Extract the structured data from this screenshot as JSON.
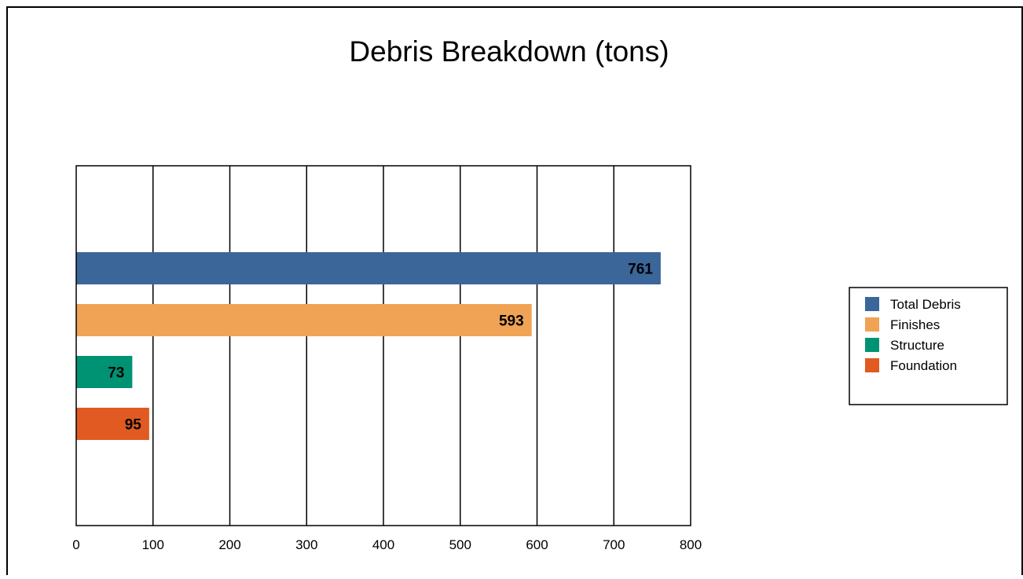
{
  "chart_data": {
    "type": "bar",
    "orientation": "horizontal",
    "title": "Debris Breakdown (tons)",
    "xlabel": "",
    "ylabel": "",
    "xlim": [
      0,
      800
    ],
    "x_ticks": [
      "0",
      "100",
      "200",
      "300",
      "400",
      "500",
      "600",
      "700",
      "800"
    ],
    "grid": "vertical",
    "legend_position": "right",
    "series": [
      {
        "name": "Total Debris",
        "value": 761,
        "label": "761",
        "color": "#3b6699"
      },
      {
        "name": "Finishes",
        "value": 593,
        "label": "593",
        "color": "#f0a354"
      },
      {
        "name": "Structure",
        "value": 73,
        "label": "73",
        "color": "#009373"
      },
      {
        "name": "Foundation",
        "value": 95,
        "label": "95",
        "color": "#e05a22"
      }
    ]
  }
}
